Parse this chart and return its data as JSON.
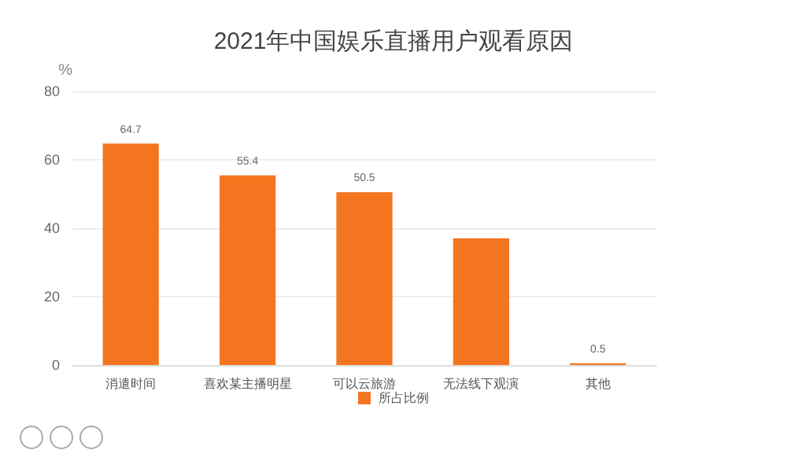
{
  "chart_data": {
    "type": "bar",
    "title": "2021年中国娱乐直播用户观看原因",
    "ylabel": "%",
    "categories": [
      "消遣时间",
      "喜欢某主播明星",
      "可以云旅游",
      "无法线下观演",
      "其他"
    ],
    "series": [
      {
        "name": "所占比例",
        "color": "#f47520",
        "values": [
          64.7,
          55.4,
          50.5,
          37,
          0.5
        ],
        "value_labels": [
          "64.7",
          "55.4",
          "50.5",
          null,
          "0.5"
        ]
      }
    ],
    "ylim": [
      0,
      80
    ],
    "yticks": [
      0,
      20,
      40,
      60,
      80
    ],
    "grid": "y",
    "legend": "bottom"
  }
}
